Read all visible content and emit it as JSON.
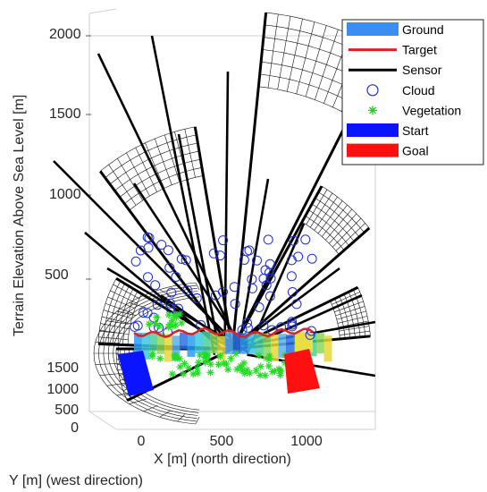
{
  "chart_data": {
    "type": "3d-surface-scene",
    "title": "",
    "xlabel": "X [m] (north direction)",
    "ylabel": "Y [m] (west direction)",
    "zlabel": "Terrain Elevation Above Sea Level [m]",
    "x_ticks": [
      "0",
      "500",
      "1000"
    ],
    "y_ticks": [
      "0",
      "500",
      "1000",
      "1500"
    ],
    "z_ticks": [
      "500",
      "1000",
      "1500",
      "2000"
    ],
    "legend": {
      "placement": "top-right",
      "entries": [
        {
          "label": "Ground",
          "kind": "patch",
          "color": "#3a8ef0"
        },
        {
          "label": "Target",
          "kind": "line",
          "color": "#e02020"
        },
        {
          "label": "Sensor",
          "kind": "line",
          "color": "#000000"
        },
        {
          "label": "Cloud",
          "kind": "marker-circle",
          "color": "#1f2fd0"
        },
        {
          "label": "Vegetation",
          "kind": "marker-star",
          "color": "#22cc22"
        },
        {
          "label": "Start",
          "kind": "patch",
          "color": "#0a14ff"
        },
        {
          "label": "Goal",
          "kind": "patch",
          "color": "#ff1010"
        }
      ]
    }
  }
}
